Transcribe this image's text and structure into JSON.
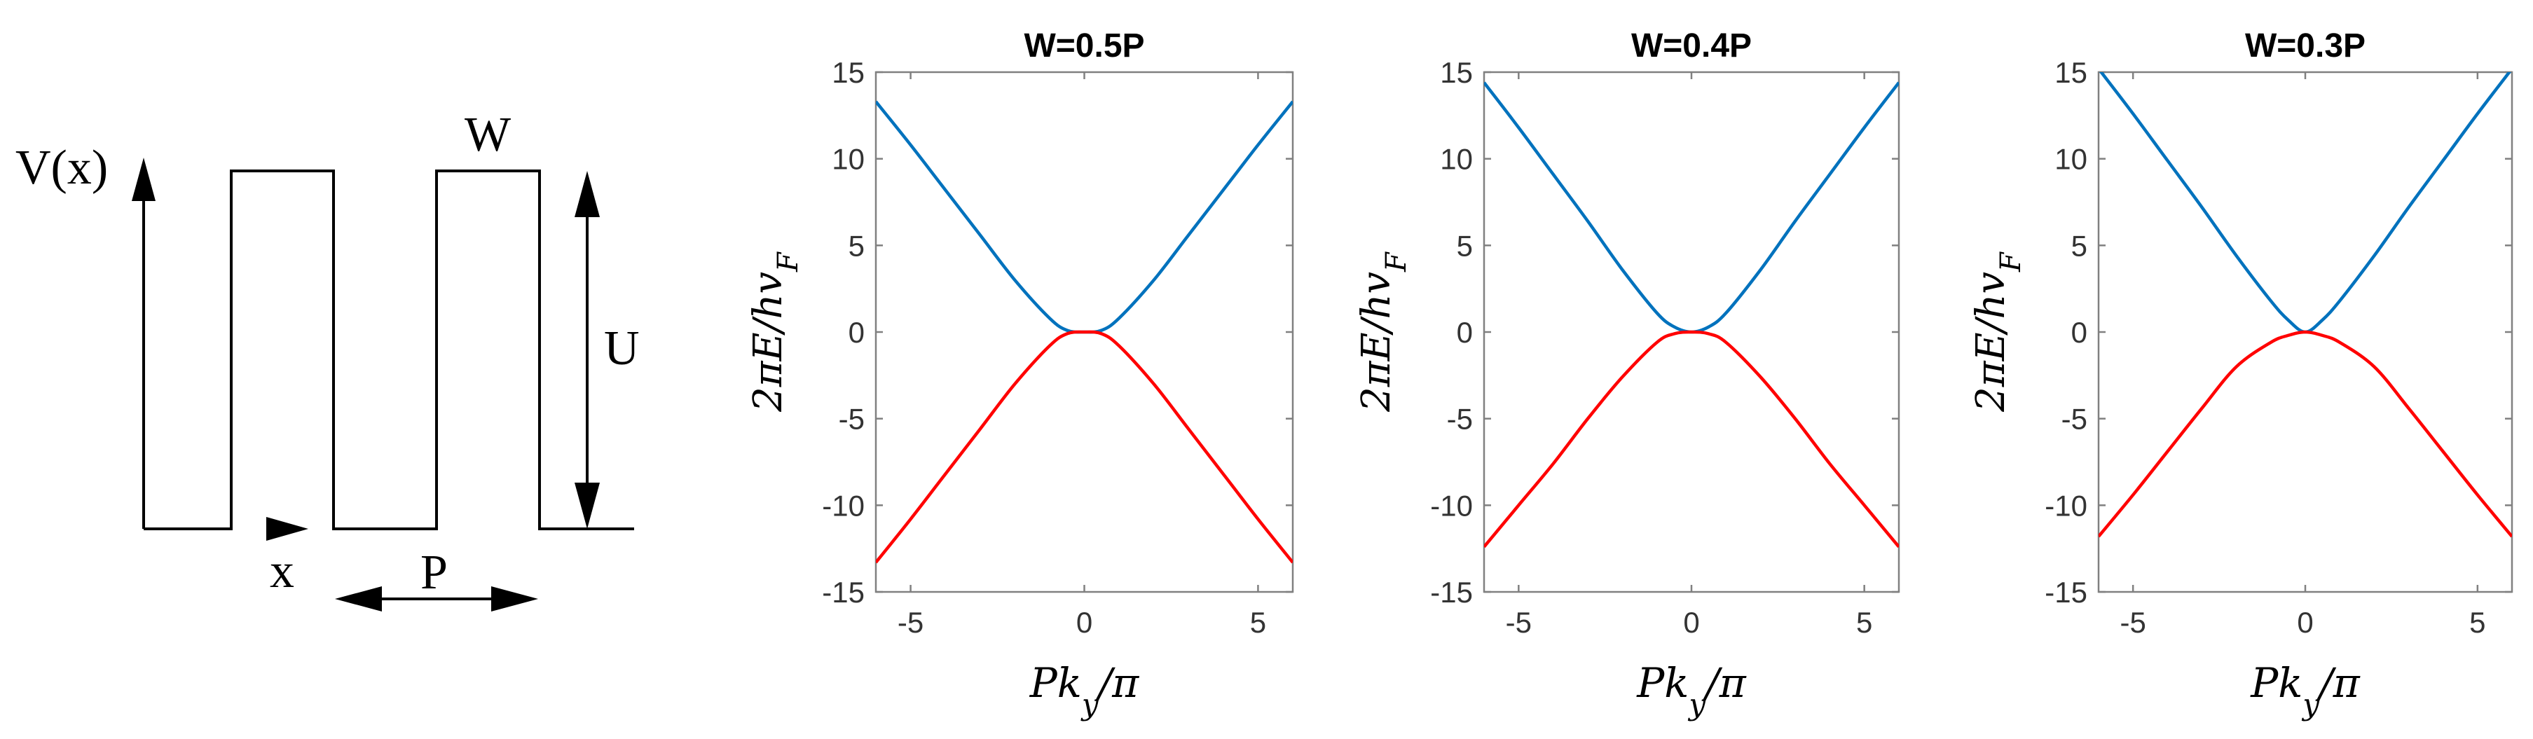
{
  "diagram": {
    "v_label": "V(x)",
    "x_label": "x",
    "w_label": "W",
    "u_label": "U",
    "p_label": "P"
  },
  "colors": {
    "conduction": "#0072BD",
    "valence": "#FF0000",
    "axes": "#808080",
    "diagram": "#000000"
  },
  "chart_data": [
    {
      "type": "line",
      "title": "W=0.5P",
      "xlabel": "Pk_y/π",
      "ylabel": "2πE/hv_F",
      "xlim": [
        -6,
        6
      ],
      "ylim": [
        -15,
        15
      ],
      "xticks": [
        -5,
        0,
        5
      ],
      "yticks": [
        15,
        10,
        5,
        0,
        -5,
        -10,
        -15
      ],
      "xtick_labels": [
        "-5",
        "0",
        "5"
      ],
      "ytick_labels": [
        "15",
        "10",
        "5",
        "0",
        "-5",
        "-10",
        "-15"
      ],
      "series": [
        {
          "name": "conduction band",
          "x": [
            -6,
            -5,
            -4,
            -3,
            -2,
            -1,
            -0.5,
            0,
            0.5,
            1,
            2,
            3,
            4,
            5,
            6
          ],
          "y": [
            13.3,
            10.8,
            8.2,
            5.6,
            3.0,
            0.8,
            0.1,
            0,
            0.1,
            0.8,
            3.0,
            5.6,
            8.2,
            10.8,
            13.3
          ]
        },
        {
          "name": "valence band",
          "x": [
            -6,
            -5,
            -4,
            -3,
            -2,
            -1,
            -0.5,
            0,
            0.5,
            1,
            2,
            3,
            4,
            5,
            6
          ],
          "y": [
            -13.3,
            -10.8,
            -8.2,
            -5.6,
            -3.0,
            -0.8,
            -0.1,
            0,
            -0.1,
            -0.8,
            -3.0,
            -5.6,
            -8.2,
            -10.8,
            -13.3
          ]
        }
      ]
    },
    {
      "type": "line",
      "title": "W=0.4P",
      "xlabel": "Pk_y/π",
      "ylabel": "2πE/hv_F",
      "xlim": [
        -6,
        6
      ],
      "ylim": [
        -15,
        15
      ],
      "xticks": [
        -5,
        0,
        5
      ],
      "yticks": [
        15,
        10,
        5,
        0,
        -5,
        -10,
        -15
      ],
      "xtick_labels": [
        "-5",
        "0",
        "5"
      ],
      "ytick_labels": [
        "15",
        "10",
        "5",
        "0",
        "-5",
        "-10",
        "-15"
      ],
      "series": [
        {
          "name": "conduction band",
          "x": [
            -6,
            -5,
            -4,
            -3,
            -2,
            -1,
            -0.5,
            0,
            0.5,
            1,
            2,
            3,
            4,
            5,
            6
          ],
          "y": [
            14.4,
            11.8,
            9.1,
            6.4,
            3.6,
            1.1,
            0.3,
            0,
            0.3,
            1.1,
            3.6,
            6.4,
            9.1,
            11.8,
            14.4
          ]
        },
        {
          "name": "valence band",
          "x": [
            -6,
            -5,
            -4,
            -3,
            -2,
            -1,
            -0.5,
            0,
            0.5,
            1,
            2,
            3,
            4,
            5,
            6
          ],
          "y": [
            -12.4,
            -10.0,
            -7.6,
            -5.0,
            -2.6,
            -0.6,
            -0.1,
            0,
            -0.1,
            -0.6,
            -2.6,
            -5.0,
            -7.6,
            -10.0,
            -12.4
          ]
        }
      ]
    },
    {
      "type": "line",
      "title": "W=0.3P",
      "xlabel": "Pk_y/π",
      "ylabel": "2πE/hv_F",
      "xlim": [
        -6,
        6
      ],
      "ylim": [
        -15,
        15
      ],
      "xticks": [
        -5,
        0,
        5
      ],
      "yticks": [
        15,
        10,
        5,
        0,
        -5,
        -10,
        -15
      ],
      "xtick_labels": [
        "-5",
        "0",
        "5"
      ],
      "ytick_labels": [
        "15",
        "10",
        "5",
        "0",
        "-5",
        "-10",
        "-15"
      ],
      "series": [
        {
          "name": "conduction band",
          "x": [
            -6,
            -5,
            -4,
            -3,
            -2,
            -1,
            -0.5,
            0,
            0.5,
            1,
            2,
            3,
            4,
            5,
            6
          ],
          "y": [
            15.2,
            12.6,
            9.9,
            7.2,
            4.4,
            1.8,
            0.7,
            0,
            0.7,
            1.8,
            4.4,
            7.2,
            9.9,
            12.6,
            15.2
          ]
        },
        {
          "name": "valence band",
          "x": [
            -6,
            -5,
            -4,
            -3,
            -2,
            -1,
            -0.5,
            0,
            0.5,
            1,
            2,
            3,
            4,
            5,
            6
          ],
          "y": [
            -11.8,
            -9.4,
            -6.9,
            -4.4,
            -2.0,
            -0.6,
            -0.2,
            0,
            -0.2,
            -0.6,
            -2.0,
            -4.4,
            -6.9,
            -9.4,
            -11.8
          ]
        }
      ]
    }
  ]
}
